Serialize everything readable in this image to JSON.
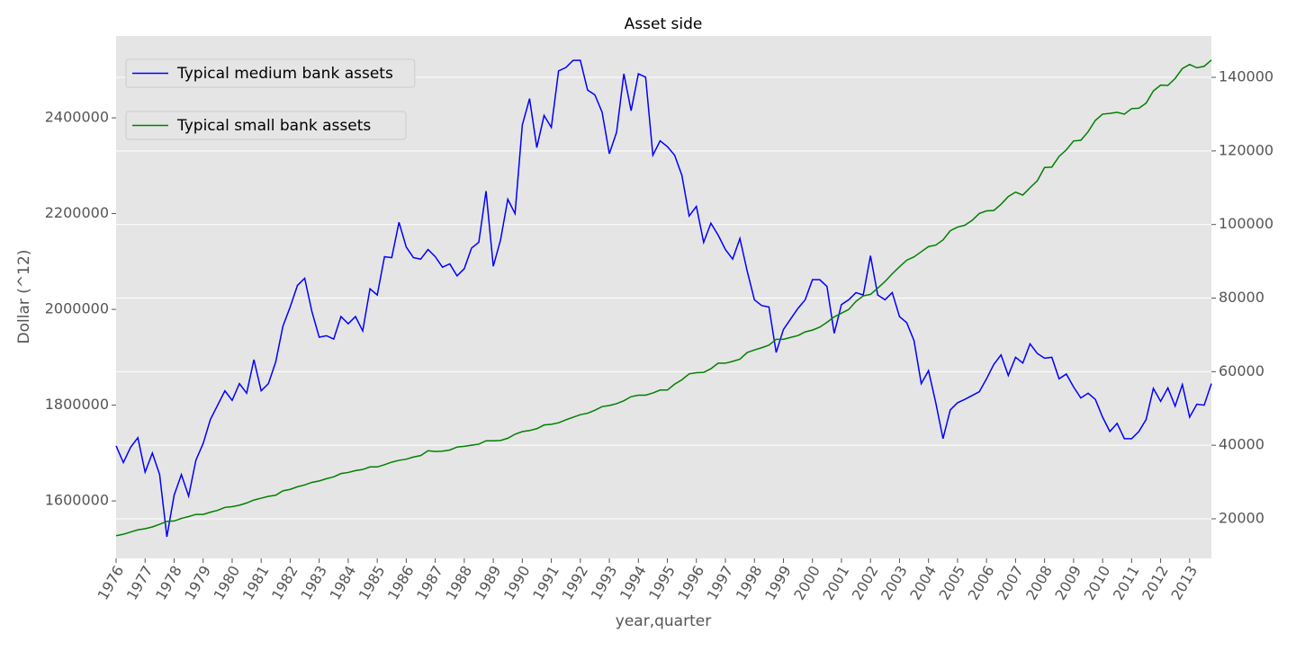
{
  "chart_data": {
    "type": "line",
    "title": "Asset side",
    "xlabel": "year,quarter",
    "ylabel": "Dollar (^12)",
    "categories": [
      "1976",
      null,
      null,
      null,
      "1977",
      null,
      null,
      null,
      "1978",
      null,
      null,
      null,
      "1979",
      null,
      null,
      null,
      "1980",
      null,
      null,
      null,
      "1981",
      null,
      null,
      null,
      "1982",
      null,
      null,
      null,
      "1983",
      null,
      null,
      null,
      "1984",
      null,
      null,
      null,
      "1985",
      null,
      null,
      null,
      "1986",
      null,
      null,
      null,
      "1987",
      null,
      null,
      null,
      "1988",
      null,
      null,
      null,
      "1989",
      null,
      null,
      null,
      "1990",
      null,
      null,
      null,
      "1991",
      null,
      null,
      null,
      "1992",
      null,
      null,
      null,
      "1993",
      null,
      null,
      null,
      "1994",
      null,
      null,
      null,
      "1995",
      null,
      null,
      null,
      "1996",
      null,
      null,
      null,
      "1997",
      null,
      null,
      null,
      "1998",
      null,
      null,
      null,
      "1999",
      null,
      null,
      null,
      "2000",
      null,
      null,
      null,
      "2001",
      null,
      null,
      null,
      "2002",
      null,
      null,
      null,
      "2003",
      null,
      null,
      null,
      "2004",
      null,
      null,
      null,
      "2005",
      null,
      null,
      null,
      "2006",
      null,
      null,
      null,
      "2007",
      null,
      null,
      null,
      "2008",
      null,
      null,
      null,
      "2009",
      null,
      null,
      null,
      "2010",
      null,
      null,
      null,
      "2011",
      null,
      null,
      null,
      "2012",
      null,
      null,
      null,
      "2013",
      null,
      null,
      null
    ],
    "series": [
      {
        "name": "Typical medium bank assets",
        "color": "#0000ff",
        "values": [
          1715000,
          1680000,
          1712000,
          1732000,
          1660000,
          1700000,
          1655000,
          1525000,
          1612000,
          1655000,
          1610000,
          1685000,
          1720000,
          1770000,
          1800000,
          1830000,
          1810000,
          1845000,
          1825000,
          1895000,
          1830000,
          1845000,
          1890000,
          1965000,
          2005000,
          2050000,
          2065000,
          1995000,
          1942000,
          1945000,
          1938000,
          1985000,
          1970000,
          1985000,
          1955000,
          2043000,
          2030000,
          2110000,
          2108000,
          2182000,
          2130000,
          2108000,
          2105000,
          2125000,
          2110000,
          2088000,
          2095000,
          2070000,
          2085000,
          2128000,
          2140000,
          2247000,
          2090000,
          2145000,
          2230000,
          2200000,
          2385000,
          2440000,
          2338000,
          2405000,
          2380000,
          2498000,
          2505000,
          2520000,
          2520000,
          2458000,
          2448000,
          2412000,
          2325000,
          2370000,
          2492000,
          2415000,
          2492000,
          2485000,
          2322000,
          2352000,
          2340000,
          2322000,
          2280000,
          2195000,
          2215000,
          2140000,
          2180000,
          2155000,
          2125000,
          2105000,
          2148000,
          2080000,
          2020000,
          2008000,
          2005000,
          1910000,
          1958000,
          1980000,
          2002000,
          2020000,
          2062000,
          2062000,
          2048000,
          1950000,
          2010000,
          2020000,
          2035000,
          2030000,
          2112000,
          2030000,
          2020000,
          2035000,
          1985000,
          1972000,
          1935000,
          1845000,
          1872000,
          1805000,
          1730000,
          1790000,
          1805000,
          1812000,
          1820000,
          1828000,
          1855000,
          1885000,
          1905000,
          1862000,
          1900000,
          1888000,
          1928000,
          1908000,
          1898000,
          1900000,
          1855000,
          1865000,
          1838000,
          1815000,
          1825000,
          1812000,
          1775000,
          1745000,
          1762000,
          1730000,
          1730000,
          1745000,
          1770000,
          1835000,
          1808000,
          1836000,
          1798000,
          1843000,
          1775000,
          1802000,
          1800000,
          1845000
        ]
      },
      {
        "name": "Typical small bank assets",
        "color": "#008000",
        "axis": "y2",
        "values": [
          15400,
          15800,
          16400,
          17000,
          17300,
          17800,
          18500,
          19300,
          19400,
          20100,
          20600,
          21200,
          21200,
          21800,
          22300,
          23100,
          23300,
          23700,
          24300,
          25100,
          25600,
          26100,
          26400,
          27600,
          28000,
          28700,
          29200,
          29900,
          30300,
          30900,
          31400,
          32300,
          32600,
          33100,
          33400,
          34100,
          34100,
          34700,
          35400,
          35900,
          36200,
          36800,
          37200,
          38500,
          38300,
          38400,
          38700,
          39500,
          39700,
          40000,
          40300,
          41200,
          41200,
          41300,
          41900,
          43000,
          43700,
          44000,
          44500,
          45500,
          45700,
          46100,
          46900,
          47600,
          48300,
          48700,
          49500,
          50500,
          50800,
          51300,
          52100,
          53200,
          53600,
          53600,
          54200,
          55000,
          55000,
          56600,
          57800,
          59400,
          59700,
          59800,
          60800,
          62300,
          62300,
          62800,
          63400,
          65200,
          65900,
          66500,
          67200,
          68800,
          68800,
          69300,
          69800,
          70800,
          71300,
          72100,
          73400,
          74900,
          75900,
          76900,
          79100,
          80600,
          81000,
          82700,
          84500,
          86600,
          88500,
          90300,
          91200,
          92600,
          94000,
          94400,
          95800,
          98300,
          99300,
          99800,
          101100,
          103000,
          103700,
          103800,
          105500,
          107600,
          108800,
          108000,
          110000,
          111900,
          115500,
          115600,
          118500,
          120300,
          122700,
          122900,
          125200,
          128300,
          130000,
          130200,
          130500,
          130000,
          131500,
          131600,
          133000,
          136300,
          137900,
          137800,
          139700,
          142400,
          143500,
          142600,
          143000,
          144700
        ]
      }
    ],
    "ylim": [
      1480000,
      2571000
    ],
    "yticks": [
      1600000,
      1800000,
      2000000,
      2200000,
      2400000
    ],
    "y2lim": [
      9240,
      151250
    ],
    "y2ticks": [
      20000,
      40000,
      60000,
      80000,
      100000,
      120000,
      140000
    ],
    "grid": true,
    "legend": "upper left"
  }
}
